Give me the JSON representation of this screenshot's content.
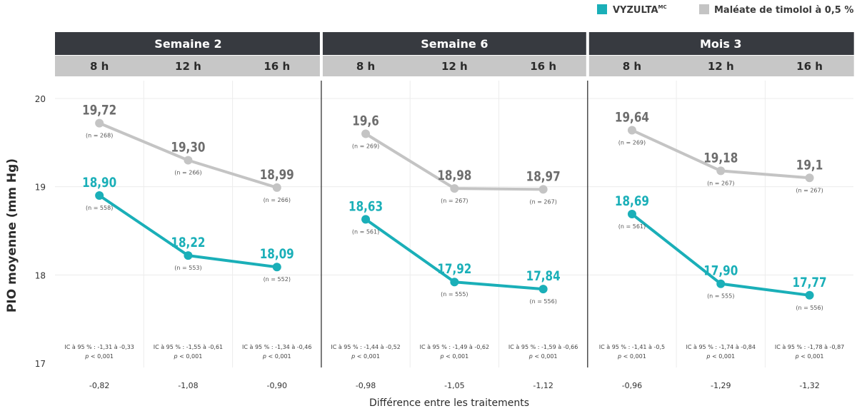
{
  "colors": {
    "vyzulta": "#1aafb8",
    "timolol": "#c4c4c4",
    "header_dark": "#373a40",
    "header_light": "#c7c7c7",
    "grey_text": "#6d6d6d"
  },
  "legend": [
    {
      "label": "VYZULTA",
      "superscript": "MC",
      "color_key": "vyzulta"
    },
    {
      "label": "Maléate de timolol à 0,5 %",
      "color_key": "timolol"
    }
  ],
  "chart_data": {
    "type": "line",
    "ylabel": "PIO moyenne (mm Hg)",
    "xlabel": "Différence entre les traitements",
    "ylim": [
      17,
      20
    ],
    "yticks": [
      "17",
      "18",
      "19",
      "20"
    ],
    "grid": true,
    "legend_position": "top-right",
    "groups": [
      {
        "name": "Semaine 2",
        "times": [
          "8 h",
          "12 h",
          "16 h"
        ]
      },
      {
        "name": "Semaine 6",
        "times": [
          "8 h",
          "12 h",
          "16 h"
        ]
      },
      {
        "name": "Mois 3",
        "times": [
          "8 h",
          "12 h",
          "16 h"
        ]
      }
    ],
    "series": [
      {
        "name": "Maléate de timolol à 0,5 %",
        "color_key": "timolol",
        "values": [
          19.72,
          19.3,
          18.99,
          19.6,
          18.98,
          18.97,
          19.64,
          19.18,
          19.1
        ],
        "labels": [
          "19,72",
          "19,30",
          "18,99",
          "19,6",
          "18,98",
          "18,97",
          "19,64",
          "19,18",
          "19,1"
        ],
        "n": [
          "(n = 268)",
          "(n = 266)",
          "(n = 266)",
          "(n = 269)",
          "(n = 267)",
          "(n = 267)",
          "(n = 269)",
          "(n = 267)",
          "(n = 267)"
        ]
      },
      {
        "name": "VYZULTA",
        "color_key": "vyzulta",
        "values": [
          18.9,
          18.22,
          18.09,
          18.63,
          17.92,
          17.84,
          18.69,
          17.9,
          17.77
        ],
        "labels": [
          "18,90",
          "18,22",
          "18,09",
          "18,63",
          "17,92",
          "17,84",
          "18,69",
          "17,90",
          "17,77"
        ],
        "n": [
          "(n = 558)",
          "(n = 553)",
          "(n = 552)",
          "(n = 561)",
          "(n = 555)",
          "(n = 556)",
          "(n = 561)",
          "(n = 555)",
          "(n = 556)"
        ]
      }
    ],
    "ci": [
      "IC à 95 % : -1,31 à -0,33",
      "IC à 95 % : -1,55 à -0,61",
      "IC à 95 % : -1,34 à -0,46",
      "IC à 95 % : -1,44 à -0,52",
      "IC à 95 % : -1,49 à -0,62",
      "IC à 95 % : -1,59 à -0,66",
      "IC à 95 % : -1,41 à -0,5",
      "IC à 95 % : -1,74 à -0,84",
      "IC à 95 % : -1,78 à -0,87"
    ],
    "p_value": "< 0,001",
    "p_label": "p",
    "differences": [
      "-0,82",
      "-1,08",
      "-0,90",
      "-0,98",
      "-1,05",
      "-1,12",
      "-0,96",
      "-1,29",
      "-1,32"
    ]
  }
}
